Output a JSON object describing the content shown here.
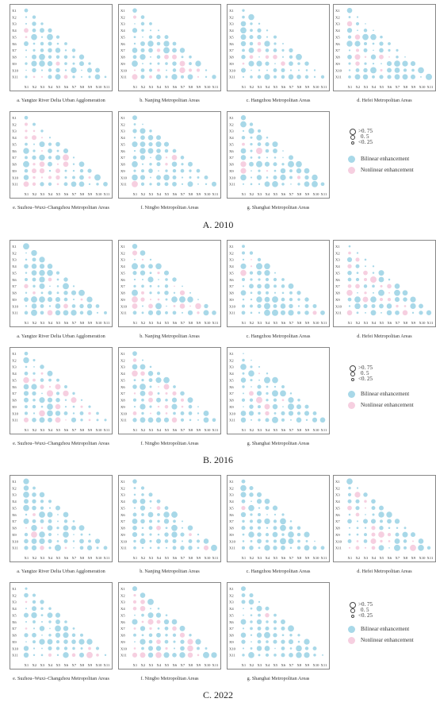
{
  "colors": {
    "bilinear": "#a8d8e8",
    "nonlinear": "#f6cfe0",
    "frame": "#555555",
    "highlight": "#2b3d4a"
  },
  "legend": {
    "size_labels": [
      ">0. 75",
      "0. 5",
      "<0. 25"
    ],
    "bilinear": "Bilinear enhancement",
    "nonlinear": "Nonlinear enhancement"
  },
  "variables": [
    "X1",
    "X2",
    "X3",
    "X4",
    "X5",
    "X6",
    "X7",
    "X8",
    "X9",
    "X10",
    "X11"
  ],
  "sections": [
    {
      "title": "A. 2010",
      "captions": [
        "a. Yangtze River Delta Urban Agglomeration",
        "b. Nanjing Metropolitan Areas",
        "c. Hangzhou Metropolitan Areas",
        "d. Hefei Metropolitan Areas",
        "e. Suzhou–Wuxi–Changzhou Metropolitan Areas",
        "f. Ningbo Metropolitan Areas",
        "g. Shanghai Metropolitan Areas"
      ]
    },
    {
      "title": "B. 2016",
      "captions": [
        "a. Yangtze River Delta Urban Agglomeration",
        "b. Nanjing Metropolitan Areas",
        "c. Hangzhou Metropolitan Areas",
        "d. Hefei Metropolitan Areas",
        "e. Suzhou–Wuxi–Changzhou Metropolitan Areas",
        "f. Ningbo Metropolitan Areas",
        "g. Shanghai Metropolitan Areas"
      ]
    },
    {
      "title": "C. 2022",
      "captions": [
        "a. Yangtze River Delta Urban Agglomeration",
        "b. Nanjing Metropolitan Areas",
        "c. Hangzhou Metropolitan Areas",
        "d. Hefei Metropolitan Areas",
        "e. Suzhou–Wuxi–Changzhou Metropolitan Areas",
        "f. Ningbo Metropolitan Areas",
        "g. Shanghai Metropolitan Areas"
      ]
    }
  ],
  "chart_data": {
    "type": "heatmap",
    "description_note": "Lower-triangular interaction matrices of factors X1–X11; circle size = interaction q-value, color = enhancement type.",
    "size_scale": [
      0.25,
      0.5,
      0.75
    ],
    "categories": [
      "Bilinear enhancement",
      "Nonlinear enhancement"
    ],
    "panels_per_year": 7,
    "years": [
      "2010",
      "2016",
      "2022"
    ]
  }
}
